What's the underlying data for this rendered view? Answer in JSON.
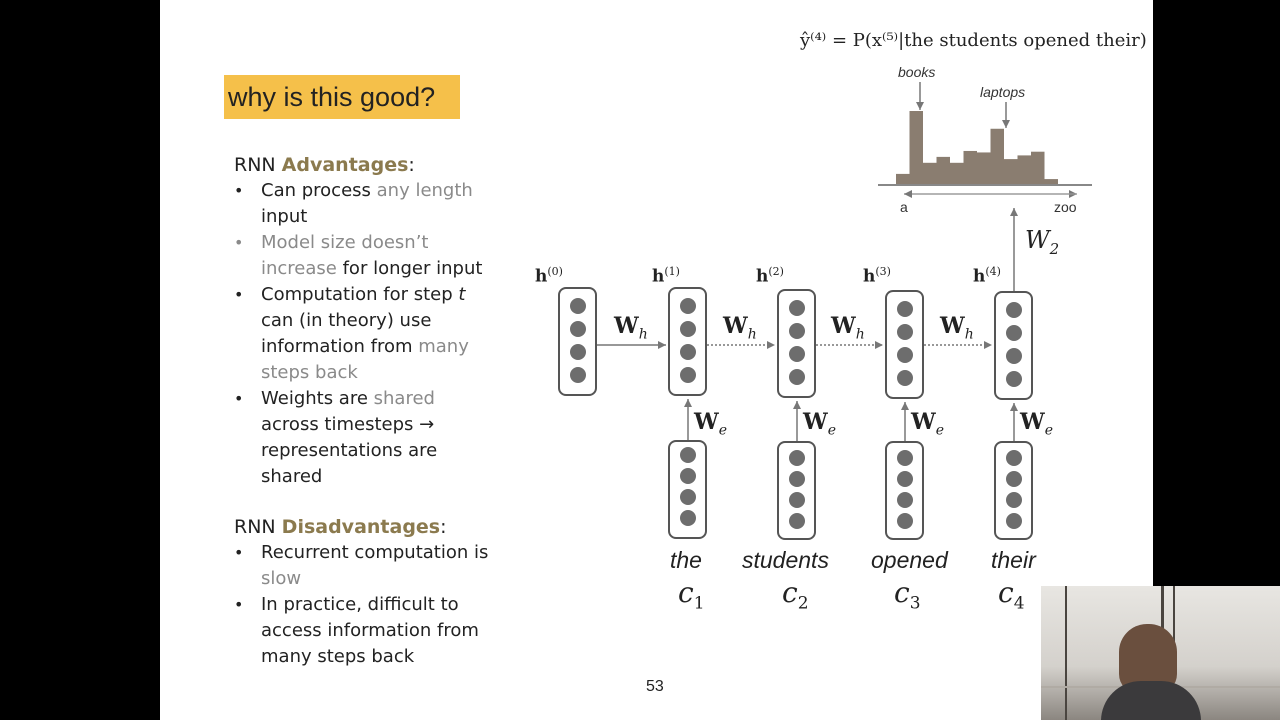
{
  "slide": {
    "title": "why is this good?",
    "formula": "ŷ⁽⁴⁾ = P(x⁽⁵⁾|the students opened their)",
    "page_number": "53",
    "advantages": {
      "prefix": "RNN ",
      "keyword": "Advantages",
      "suffix": ":",
      "items": [
        {
          "parts": [
            "Can process ",
            "any length",
            " input"
          ]
        },
        {
          "parts": [
            "Model size doesn’t increase",
            " for longer input"
          ]
        },
        {
          "parts": [
            "Computation for step ",
            "t",
            " can (in theory) use information from ",
            "many steps back"
          ]
        },
        {
          "parts": [
            "Weights are ",
            "shared",
            " across timesteps → representations are shared"
          ]
        }
      ]
    },
    "disadvantages": {
      "prefix": "RNN ",
      "keyword": "Disadvantages",
      "suffix": ":",
      "items": [
        {
          "parts": [
            "Recurrent computation is ",
            "slow"
          ]
        },
        {
          "parts": [
            "In practice, difficult to access information from many steps back"
          ]
        }
      ]
    }
  },
  "diagram": {
    "hidden_labels": [
      "h",
      "h",
      "h",
      "h",
      "h"
    ],
    "hidden_superscripts": [
      "(0)",
      "(1)",
      "(2)",
      "(3)",
      "(4)"
    ],
    "recurrent_weight": "W",
    "recurrent_weight_sub": "h",
    "embedding_weight": "W",
    "embedding_weight_sub": "e",
    "output_weight": "W",
    "output_weight_sub": "2",
    "words": [
      "the",
      "students",
      "opened",
      "their"
    ],
    "embedding_labels": [
      "c",
      "c",
      "c",
      "c"
    ],
    "embedding_subs": [
      "1",
      "2",
      "3",
      "4"
    ],
    "histogram": {
      "peak_labels": [
        "books",
        "laptops"
      ],
      "axis_start": "a",
      "axis_end": "zoo",
      "relative_heights": [
        0.15,
        1.0,
        0.3,
        0.38,
        0.3,
        0.46,
        0.44,
        0.76,
        0.35,
        0.4,
        0.45,
        0.08
      ]
    }
  },
  "colors": {
    "highlight": "#f5c04a",
    "neuron": "#6d6d6d",
    "histogram": "#8a7d70"
  }
}
